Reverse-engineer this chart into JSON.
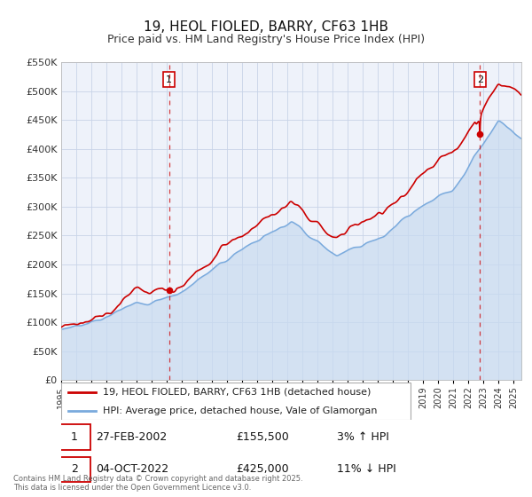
{
  "title": "19, HEOL FIOLED, BARRY, CF63 1HB",
  "subtitle": "Price paid vs. HM Land Registry's House Price Index (HPI)",
  "bg_color": "#ffffff",
  "plot_bg_color": "#eef2fa",
  "grid_color": "#c8d4e8",
  "hpi_color": "#7aaadd",
  "hpi_fill_color": "#c8daf0",
  "price_color": "#cc0000",
  "ylim": [
    0,
    550000
  ],
  "yticks": [
    0,
    50000,
    100000,
    150000,
    200000,
    250000,
    300000,
    350000,
    400000,
    450000,
    500000,
    550000
  ],
  "ytick_labels": [
    "£0",
    "£50K",
    "£100K",
    "£150K",
    "£200K",
    "£250K",
    "£300K",
    "£350K",
    "£400K",
    "£450K",
    "£500K",
    "£550K"
  ],
  "sale1_x": 2002.15,
  "sale1_y": 155500,
  "sale1_label": "1",
  "sale1_date": "27-FEB-2002",
  "sale1_price": "£155,500",
  "sale1_hpi": "3% ↑ HPI",
  "sale2_x": 2022.75,
  "sale2_y": 425000,
  "sale2_label": "2",
  "sale2_date": "04-OCT-2022",
  "sale2_price": "£425,000",
  "sale2_hpi": "11% ↓ HPI",
  "legend_label_price": "19, HEOL FIOLED, BARRY, CF63 1HB (detached house)",
  "legend_label_hpi": "HPI: Average price, detached house, Vale of Glamorgan",
  "footer": "Contains HM Land Registry data © Crown copyright and database right 2025.\nThis data is licensed under the Open Government Licence v3.0.",
  "xmin": 1995,
  "xmax": 2025.5
}
